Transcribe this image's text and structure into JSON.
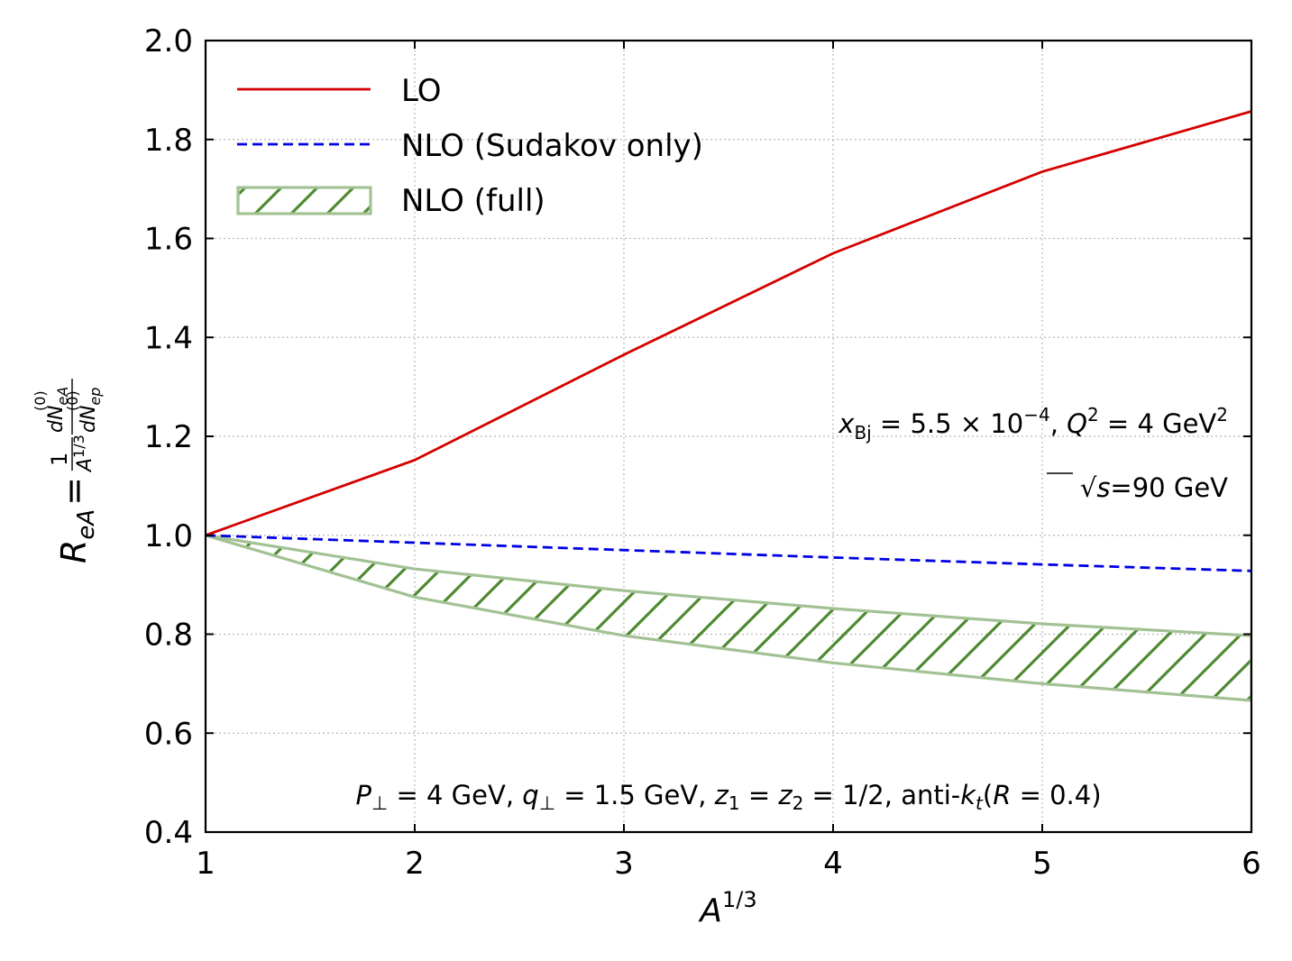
{
  "chart_data": {
    "type": "line",
    "x": [
      1,
      2,
      3,
      4,
      5,
      6
    ],
    "xlim": [
      1,
      6
    ],
    "ylim": [
      0.4,
      2.0
    ],
    "xticks": [
      1,
      2,
      3,
      4,
      5,
      6
    ],
    "yticks": [
      0.4,
      0.6,
      0.8,
      1.0,
      1.2,
      1.4,
      1.6,
      1.8,
      2.0
    ],
    "xtick_labels": [
      "1",
      "2",
      "3",
      "4",
      "5",
      "6"
    ],
    "ytick_labels": [
      "0.4",
      "0.6",
      "0.8",
      "1.0",
      "1.2",
      "1.4",
      "1.6",
      "1.8",
      "2.0"
    ],
    "grid": true,
    "legend_position": "top-left",
    "xlabel": {
      "base": "A",
      "sup": "1/3"
    },
    "ylabel": {
      "lhs": "R",
      "lhs_sub": "eA",
      "eq": "=",
      "frac1_num": "1",
      "frac1_den_base": "A",
      "frac1_den_sup": "1/3",
      "frac2_num_base": "dN",
      "frac2_num_sub": "eA",
      "frac2_num_sup": "(0)",
      "frac2_den_base": "dN",
      "frac2_den_sub": "ep",
      "frac2_den_sup": "(0)"
    },
    "series": [
      {
        "name": "LO",
        "style": "solid",
        "color": "#d40000",
        "values": [
          1.0,
          1.152,
          1.365,
          1.57,
          1.735,
          1.857
        ]
      },
      {
        "name": "NLO (Sudakov only)",
        "style": "dashed",
        "color": "#0000e6",
        "values": [
          1.0,
          0.985,
          0.97,
          0.955,
          0.941,
          0.928
        ]
      },
      {
        "name": "NLO (full)",
        "style": "hatched-band",
        "color": "#4e8a32",
        "edge_color": "#a2c294",
        "upper": [
          1.0,
          0.932,
          0.888,
          0.852,
          0.821,
          0.797
        ],
        "lower": [
          1.0,
          0.875,
          0.797,
          0.742,
          0.7,
          0.666
        ]
      }
    ],
    "annotations": {
      "kin1": {
        "x_var": "x",
        "x_sub": "Bj",
        "x_eq": " = 5.5 × 10",
        "x_exp": "−4",
        "sep": ", ",
        "q_var": "Q",
        "q_exp": "2",
        "q_eq": " = 4 GeV",
        "q_unit_exp": "2"
      },
      "energy": {
        "sqrt": "√",
        "var": "s",
        "rest": "=90 GeV"
      },
      "cuts": {
        "p_var": "P",
        "p_sub": "⊥",
        "p_rest": " = 4 GeV, ",
        "q_var": "q",
        "q_sub": "⊥",
        "q_rest": " = 1.5 GeV, ",
        "z1_var": "z",
        "z1_sub": "1",
        "z_eq": " = ",
        "z2_var": "z",
        "z2_sub": "2",
        "z_rest": " = 1/2, anti-",
        "k_var": "k",
        "k_sub": "t",
        "open": "(",
        "r_var": "R",
        "r_rest": " = 0.4)"
      }
    }
  }
}
